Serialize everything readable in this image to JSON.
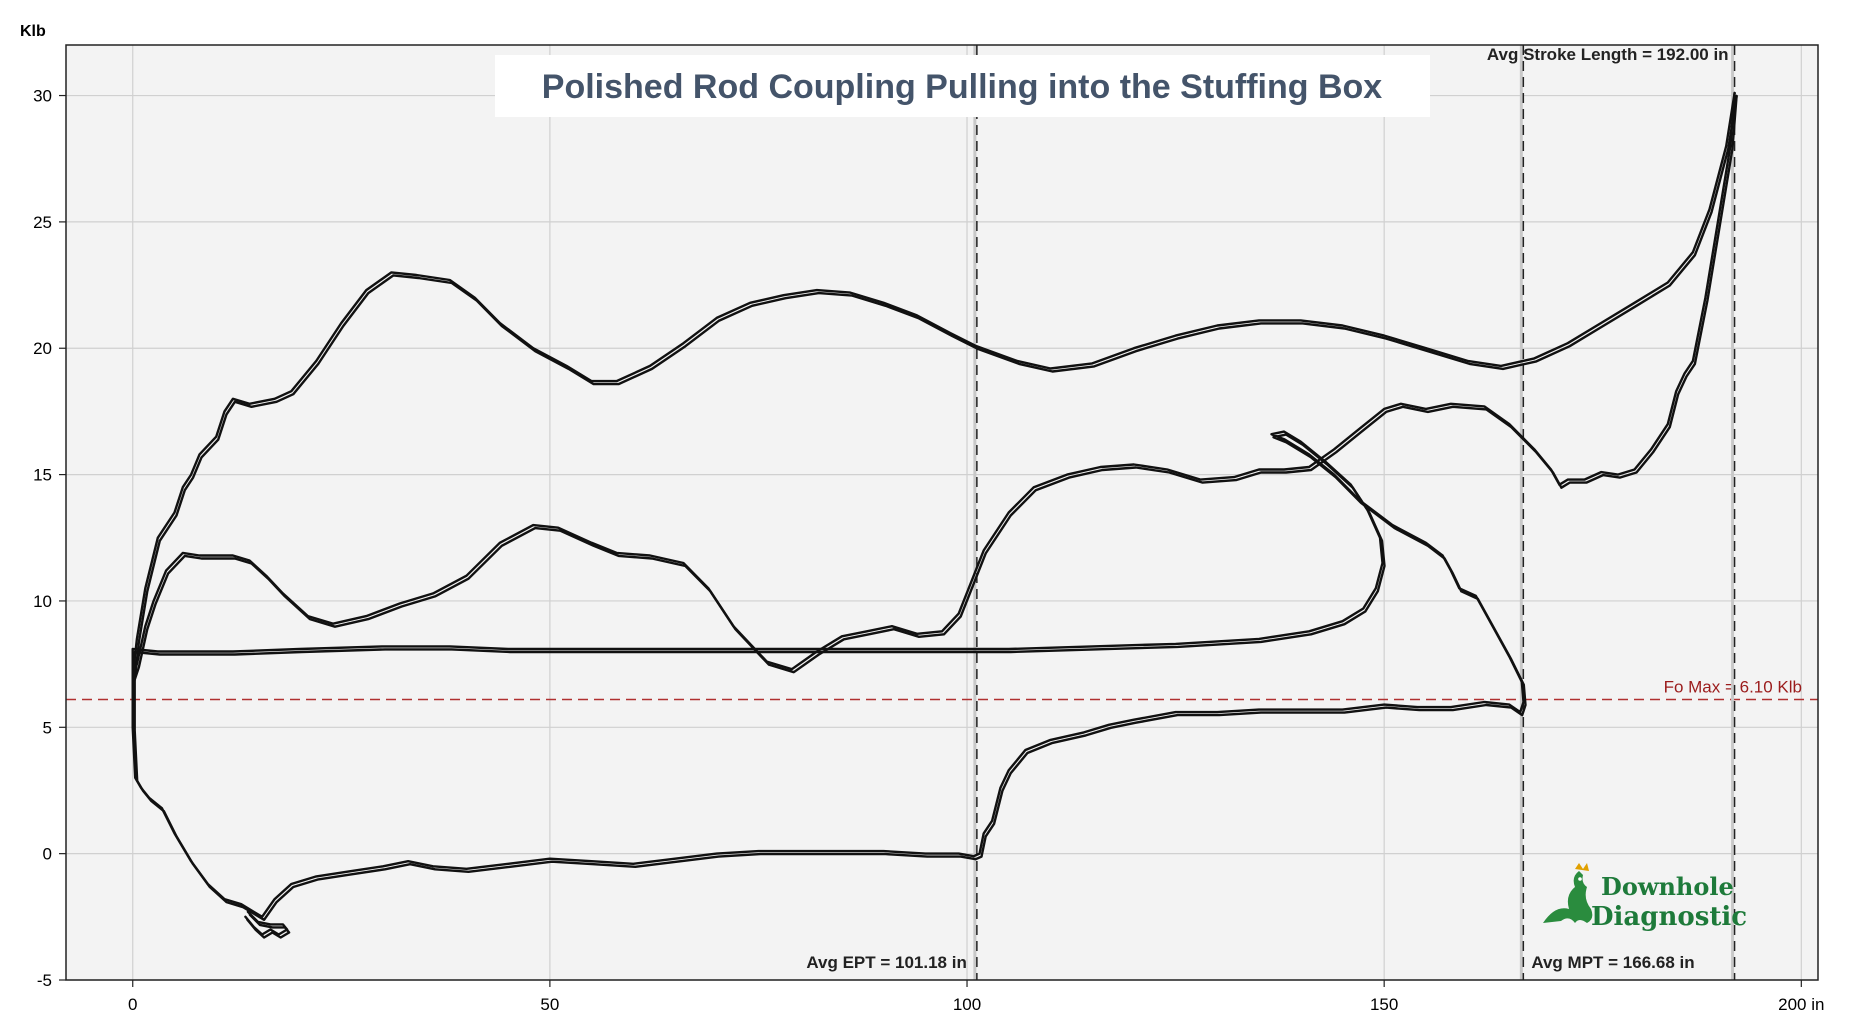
{
  "chart_data": {
    "type": "line",
    "title": "Polished Rod Coupling Pulling into the Stuffing Box",
    "xlabel": "",
    "ylabel": "",
    "x_unit": "in",
    "y_unit": "Klb",
    "xlim": [
      -8,
      202
    ],
    "ylim": [
      -5,
      32
    ],
    "x_ticks": [
      0,
      50,
      100,
      150,
      200
    ],
    "x_tick_labels": [
      "0",
      "50",
      "100",
      "150",
      "200 in"
    ],
    "y_ticks": [
      -5,
      0,
      5,
      10,
      15,
      20,
      25,
      30
    ],
    "y_tick_labels": [
      "-5",
      "0",
      "5",
      "10",
      "15",
      "20",
      "25",
      "30"
    ],
    "grid": true,
    "series": [
      {
        "name": "",
        "points": [
          [
            0.0,
            7.0
          ],
          [
            0.5,
            8.5
          ],
          [
            1.5,
            10.5
          ],
          [
            3,
            12.5
          ],
          [
            5,
            13.5
          ],
          [
            6,
            14.5
          ],
          [
            7,
            15.0
          ],
          [
            8,
            15.8
          ],
          [
            10,
            16.5
          ],
          [
            11,
            17.5
          ],
          [
            12,
            18.0
          ],
          [
            14,
            17.8
          ],
          [
            17,
            18.0
          ],
          [
            19,
            18.3
          ],
          [
            22,
            19.5
          ],
          [
            25,
            21.0
          ],
          [
            28,
            22.3
          ],
          [
            31,
            23.0
          ],
          [
            34,
            22.9
          ],
          [
            38,
            22.7
          ],
          [
            41,
            22.0
          ],
          [
            44,
            21.0
          ],
          [
            48,
            20.0
          ],
          [
            52,
            19.3
          ],
          [
            55,
            18.7
          ],
          [
            58,
            18.7
          ],
          [
            62,
            19.3
          ],
          [
            66,
            20.2
          ],
          [
            70,
            21.2
          ],
          [
            74,
            21.8
          ],
          [
            78,
            22.1
          ],
          [
            82,
            22.3
          ],
          [
            86,
            22.2
          ],
          [
            90,
            21.8
          ],
          [
            94,
            21.3
          ],
          [
            98,
            20.6
          ],
          [
            101,
            20.1
          ],
          [
            106,
            19.5
          ],
          [
            110,
            19.2
          ],
          [
            115,
            19.4
          ],
          [
            120,
            20.0
          ],
          [
            125,
            20.5
          ],
          [
            130,
            20.9
          ],
          [
            135,
            21.1
          ],
          [
            140,
            21.1
          ],
          [
            145,
            20.9
          ],
          [
            150,
            20.5
          ],
          [
            155,
            20.0
          ],
          [
            160,
            19.5
          ],
          [
            164,
            19.3
          ],
          [
            168,
            19.6
          ],
          [
            172,
            20.2
          ],
          [
            176,
            21.0
          ],
          [
            180,
            21.8
          ],
          [
            184,
            22.6
          ],
          [
            187,
            23.8
          ],
          [
            189,
            25.5
          ],
          [
            191,
            28.0
          ],
          [
            192.0,
            30.1
          ]
        ]
      },
      {
        "name": "",
        "points": [
          [
            192.0,
            30.1
          ],
          [
            191.5,
            28.0
          ],
          [
            190,
            25.0
          ],
          [
            188.5,
            22.0
          ],
          [
            187,
            19.5
          ],
          [
            186,
            19.0
          ],
          [
            185,
            18.3
          ],
          [
            184,
            17.0
          ],
          [
            182,
            16.0
          ],
          [
            180,
            15.2
          ],
          [
            178,
            15.0
          ],
          [
            176,
            15.1
          ],
          [
            174,
            14.8
          ],
          [
            172,
            14.8
          ],
          [
            171,
            14.6
          ],
          [
            170,
            15.2
          ],
          [
            168,
            16.0
          ],
          [
            165,
            17.0
          ],
          [
            162,
            17.7
          ],
          [
            158,
            17.8
          ],
          [
            155,
            17.6
          ],
          [
            152,
            17.8
          ],
          [
            150,
            17.6
          ],
          [
            147,
            16.8
          ],
          [
            144,
            16.0
          ],
          [
            141,
            15.3
          ],
          [
            138,
            15.2
          ],
          [
            135,
            15.2
          ],
          [
            132,
            14.9
          ],
          [
            128,
            14.8
          ],
          [
            124,
            15.2
          ],
          [
            120,
            15.4
          ],
          [
            116,
            15.3
          ],
          [
            112,
            15.0
          ],
          [
            108,
            14.5
          ],
          [
            105,
            13.5
          ],
          [
            102,
            12.0
          ],
          [
            99,
            9.5
          ],
          [
            97,
            8.8
          ],
          [
            94,
            8.7
          ],
          [
            91,
            9.0
          ],
          [
            88,
            8.8
          ],
          [
            85,
            8.6
          ],
          [
            82,
            8.0
          ],
          [
            79,
            7.3
          ],
          [
            76,
            7.6
          ],
          [
            72,
            9.0
          ],
          [
            69,
            10.5
          ],
          [
            66,
            11.5
          ],
          [
            62,
            11.8
          ],
          [
            58,
            11.9
          ],
          [
            55,
            12.3
          ],
          [
            51,
            12.9
          ],
          [
            48,
            13.0
          ],
          [
            44,
            12.3
          ],
          [
            40,
            11.0
          ],
          [
            36,
            10.3
          ],
          [
            32,
            9.9
          ],
          [
            28,
            9.4
          ],
          [
            24,
            9.1
          ],
          [
            21,
            9.4
          ],
          [
            18,
            10.3
          ],
          [
            16,
            11.0
          ],
          [
            14,
            11.6
          ],
          [
            12,
            11.8
          ],
          [
            10,
            11.8
          ],
          [
            8,
            11.8
          ],
          [
            6,
            11.9
          ],
          [
            4,
            11.2
          ],
          [
            2.5,
            10.0
          ],
          [
            1.5,
            9.0
          ],
          [
            0.5,
            7.5
          ],
          [
            0.0,
            7.0
          ]
        ]
      },
      {
        "name": "",
        "points": [
          [
            0.0,
            8.1
          ],
          [
            3,
            8.0
          ],
          [
            7,
            8.0
          ],
          [
            12,
            8.0
          ],
          [
            20,
            8.1
          ],
          [
            30,
            8.2
          ],
          [
            38,
            8.2
          ],
          [
            45,
            8.1
          ],
          [
            55,
            8.1
          ],
          [
            65,
            8.1
          ],
          [
            75,
            8.1
          ],
          [
            85,
            8.1
          ],
          [
            95,
            8.1
          ],
          [
            105,
            8.1
          ],
          [
            115,
            8.2
          ],
          [
            125,
            8.3
          ],
          [
            135,
            8.5
          ],
          [
            141,
            8.8
          ],
          [
            145,
            9.2
          ],
          [
            147.5,
            9.7
          ],
          [
            149,
            10.5
          ],
          [
            149.8,
            11.5
          ],
          [
            149.5,
            12.5
          ],
          [
            148,
            13.6
          ],
          [
            146,
            14.6
          ],
          [
            143,
            15.5
          ],
          [
            140,
            16.3
          ],
          [
            138,
            16.7
          ],
          [
            136.5,
            16.6
          ],
          [
            138,
            16.4
          ],
          [
            141,
            15.8
          ],
          [
            144,
            15.0
          ],
          [
            147,
            14.0
          ],
          [
            151,
            13.0
          ],
          [
            155,
            12.3
          ],
          [
            157,
            11.8
          ],
          [
            158,
            11.2
          ],
          [
            159,
            10.5
          ],
          [
            161,
            10.2
          ],
          [
            163,
            9.0
          ],
          [
            165,
            7.8
          ],
          [
            166.5,
            6.8
          ],
          [
            166.7,
            6.0
          ],
          [
            166.3,
            5.6
          ],
          [
            165,
            5.9
          ],
          [
            162,
            6.0
          ],
          [
            158,
            5.8
          ],
          [
            154,
            5.8
          ],
          [
            150,
            5.9
          ],
          [
            145,
            5.7
          ],
          [
            140,
            5.7
          ],
          [
            135,
            5.7
          ],
          [
            130,
            5.6
          ],
          [
            125,
            5.6
          ],
          [
            120,
            5.3
          ],
          [
            117,
            5.1
          ],
          [
            114,
            4.8
          ],
          [
            110,
            4.5
          ],
          [
            107,
            4.1
          ],
          [
            105,
            3.3
          ],
          [
            104,
            2.6
          ],
          [
            103,
            1.3
          ],
          [
            102,
            0.8
          ],
          [
            101.5,
            0.0
          ],
          [
            100.8,
            -0.1
          ],
          [
            99,
            0.0
          ],
          [
            95,
            0.0
          ],
          [
            90,
            0.1
          ],
          [
            85,
            0.1
          ],
          [
            80,
            0.1
          ],
          [
            75,
            0.1
          ],
          [
            70,
            0.0
          ],
          [
            65,
            -0.2
          ],
          [
            60,
            -0.4
          ],
          [
            55,
            -0.3
          ],
          [
            50,
            -0.2
          ],
          [
            45,
            -0.4
          ],
          [
            40,
            -0.6
          ],
          [
            36,
            -0.5
          ],
          [
            33,
            -0.3
          ],
          [
            30,
            -0.5
          ],
          [
            26,
            -0.7
          ],
          [
            22,
            -0.9
          ],
          [
            19,
            -1.2
          ],
          [
            17,
            -1.8
          ],
          [
            15.5,
            -2.5
          ],
          [
            14.5,
            -2.3
          ],
          [
            13,
            -2.0
          ],
          [
            11,
            -1.8
          ],
          [
            9,
            -1.2
          ],
          [
            7,
            -0.3
          ],
          [
            5,
            0.8
          ],
          [
            3.5,
            1.8
          ],
          [
            2,
            2.2
          ],
          [
            1,
            2.6
          ],
          [
            0.3,
            3.0
          ],
          [
            0.0,
            5.0
          ],
          [
            0.0,
            8.1
          ]
        ]
      },
      {
        "name": "",
        "points": [
          [
            13.5,
            -2.5
          ],
          [
            14.5,
            -2.9
          ],
          [
            15.5,
            -3.2
          ],
          [
            16.5,
            -3.0
          ],
          [
            17.5,
            -3.2
          ],
          [
            18.5,
            -3.0
          ],
          [
            18.0,
            -2.8
          ],
          [
            16.5,
            -2.8
          ],
          [
            15.0,
            -2.7
          ],
          [
            13.8,
            -2.3
          ]
        ]
      }
    ],
    "reference_lines": [
      {
        "label": "Fo Max = 6.10 Klb",
        "axis": "y",
        "value": 6.1,
        "color": "#b03030",
        "style": "dashed"
      },
      {
        "label": "Avg EPT = 101.18 in",
        "axis": "x",
        "value": 101.18,
        "style": "dashed"
      },
      {
        "label": "Avg MPT = 166.68 in",
        "axis": "x",
        "value": 166.68,
        "style": "dashed"
      },
      {
        "label": "Avg Stroke Length = 192.00 in",
        "axis": "x",
        "value": 192.0,
        "style": "dashed"
      }
    ],
    "legend": "none"
  },
  "units": {
    "y": "Klb"
  },
  "logo": {
    "line1": "Downhole",
    "line2": "Diagnostic",
    "color": "#1e7a3a",
    "icon": "dragon-icon"
  },
  "colors": {
    "background": "#ffffff",
    "plot_background": "#f3f3f3",
    "grid": "#d0d0d0",
    "curve": "#111111",
    "fo_line": "#b03030",
    "title": "#44546a"
  }
}
